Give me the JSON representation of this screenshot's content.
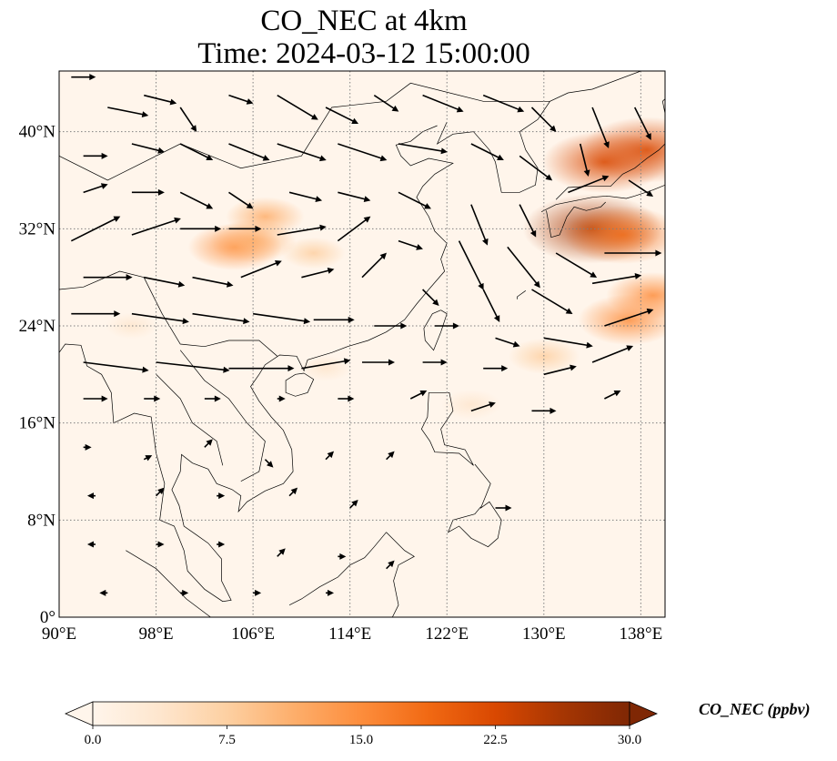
{
  "title": {
    "line1": "CO_NEC at 4km",
    "line2": "Time: 2024-03-12 15:00:00"
  },
  "map": {
    "lon_range": [
      90,
      140
    ],
    "lat_range": [
      0,
      45
    ],
    "lon_ticks": [
      "90°E",
      "98°E",
      "106°E",
      "114°E",
      "122°E",
      "130°E",
      "138°E"
    ],
    "lat_ticks": [
      "0°",
      "8°N",
      "16°N",
      "24°N",
      "32°N",
      "40°N"
    ],
    "gridlines": "dotted",
    "background_color": "#fff5eb"
  },
  "colorbar": {
    "label": "CO_NEC (ppbv)",
    "ticks": [
      "0.0",
      "7.5",
      "15.0",
      "22.5",
      "30.0"
    ],
    "range": [
      0,
      30
    ],
    "colors": [
      "#fff5eb",
      "#fee6ce",
      "#fdd0a2",
      "#fdae6b",
      "#fd8d3c",
      "#f16913",
      "#d94801",
      "#a63603",
      "#7f2704"
    ],
    "extend": "both",
    "colormap": "Oranges"
  },
  "plumes": [
    {
      "lon": 104.5,
      "lat": 30.5,
      "value": 14
    },
    {
      "lon": 107.0,
      "lat": 33.0,
      "value": 10
    },
    {
      "lon": 106.0,
      "lat": 31.0,
      "value": 12
    },
    {
      "lon": 111.0,
      "lat": 30.0,
      "value": 6
    },
    {
      "lon": 135.0,
      "lat": 37.5,
      "value": 22
    },
    {
      "lon": 138.5,
      "lat": 38.5,
      "value": 24
    },
    {
      "lon": 134.0,
      "lat": 32.0,
      "value": 26
    },
    {
      "lon": 136.5,
      "lat": 31.5,
      "value": 20
    },
    {
      "lon": 137.0,
      "lat": 24.5,
      "value": 16
    },
    {
      "lon": 139.0,
      "lat": 26.5,
      "value": 14
    },
    {
      "lon": 130.0,
      "lat": 21.5,
      "value": 8
    },
    {
      "lon": 124.0,
      "lat": 17.5,
      "value": 5
    },
    {
      "lon": 112.0,
      "lat": 20.5,
      "value": 3
    },
    {
      "lon": 96.0,
      "lat": 24.0,
      "value": 3
    }
  ],
  "wind_arrows": [
    {
      "lon": 91,
      "lat": 44.5,
      "u": 3,
      "v": 0
    },
    {
      "lon": 94,
      "lat": 42,
      "u": 5,
      "v": -1
    },
    {
      "lon": 97,
      "lat": 43,
      "u": 4,
      "v": -1
    },
    {
      "lon": 100,
      "lat": 42,
      "u": 2,
      "v": -3
    },
    {
      "lon": 104,
      "lat": 43,
      "u": 3,
      "v": -1
    },
    {
      "lon": 108,
      "lat": 43,
      "u": 5,
      "v": -3
    },
    {
      "lon": 112,
      "lat": 42,
      "u": 4,
      "v": -2
    },
    {
      "lon": 116,
      "lat": 43,
      "u": 3,
      "v": -2
    },
    {
      "lon": 120,
      "lat": 43,
      "u": 5,
      "v": -2
    },
    {
      "lon": 125,
      "lat": 43,
      "u": 5,
      "v": -2
    },
    {
      "lon": 129,
      "lat": 42,
      "u": 3,
      "v": -3
    },
    {
      "lon": 134,
      "lat": 42,
      "u": 2,
      "v": -5
    },
    {
      "lon": 137.5,
      "lat": 42,
      "u": 2,
      "v": -4
    },
    {
      "lon": 92,
      "lat": 38,
      "u": 3,
      "v": 0
    },
    {
      "lon": 96,
      "lat": 39,
      "u": 4,
      "v": -1
    },
    {
      "lon": 100,
      "lat": 39,
      "u": 4,
      "v": -2
    },
    {
      "lon": 104,
      "lat": 39,
      "u": 5,
      "v": -2
    },
    {
      "lon": 108,
      "lat": 39,
      "u": 6,
      "v": -2
    },
    {
      "lon": 113,
      "lat": 39,
      "u": 6,
      "v": -2
    },
    {
      "lon": 118,
      "lat": 39,
      "u": 6,
      "v": -1
    },
    {
      "lon": 124,
      "lat": 39,
      "u": 4,
      "v": -2
    },
    {
      "lon": 128,
      "lat": 38,
      "u": 4,
      "v": -3
    },
    {
      "lon": 133,
      "lat": 39,
      "u": 1,
      "v": -4
    },
    {
      "lon": 137,
      "lat": 36,
      "u": 3,
      "v": -2
    },
    {
      "lon": 92,
      "lat": 35,
      "u": 3,
      "v": 1
    },
    {
      "lon": 96,
      "lat": 35,
      "u": 4,
      "v": 0
    },
    {
      "lon": 100,
      "lat": 35,
      "u": 4,
      "v": -2
    },
    {
      "lon": 104,
      "lat": 35,
      "u": 3,
      "v": -2
    },
    {
      "lon": 109,
      "lat": 35,
      "u": 4,
      "v": -1
    },
    {
      "lon": 113,
      "lat": 35,
      "u": 4,
      "v": -1
    },
    {
      "lon": 118,
      "lat": 35,
      "u": 4,
      "v": -2
    },
    {
      "lon": 124,
      "lat": 34,
      "u": 2,
      "v": -5
    },
    {
      "lon": 128,
      "lat": 34,
      "u": 2,
      "v": -4
    },
    {
      "lon": 132,
      "lat": 35,
      "u": 5,
      "v": 2
    },
    {
      "lon": 91,
      "lat": 31,
      "u": 6,
      "v": 3
    },
    {
      "lon": 96,
      "lat": 31.5,
      "u": 6,
      "v": 2
    },
    {
      "lon": 100,
      "lat": 32,
      "u": 5,
      "v": 0
    },
    {
      "lon": 104,
      "lat": 32,
      "u": 4,
      "v": 0
    },
    {
      "lon": 108,
      "lat": 31.5,
      "u": 6,
      "v": 1
    },
    {
      "lon": 113,
      "lat": 31,
      "u": 4,
      "v": 3
    },
    {
      "lon": 118,
      "lat": 31,
      "u": 3,
      "v": -1
    },
    {
      "lon": 123,
      "lat": 31,
      "u": 3,
      "v": -6
    },
    {
      "lon": 127,
      "lat": 30.5,
      "u": 4,
      "v": -5
    },
    {
      "lon": 131,
      "lat": 30,
      "u": 5,
      "v": -3
    },
    {
      "lon": 135,
      "lat": 30,
      "u": 7,
      "v": 0
    },
    {
      "lon": 92,
      "lat": 28,
      "u": 6,
      "v": 0
    },
    {
      "lon": 97,
      "lat": 28,
      "u": 5,
      "v": -1
    },
    {
      "lon": 101,
      "lat": 28,
      "u": 5,
      "v": -1
    },
    {
      "lon": 105,
      "lat": 28,
      "u": 5,
      "v": 2
    },
    {
      "lon": 110,
      "lat": 28,
      "u": 4,
      "v": 1
    },
    {
      "lon": 115,
      "lat": 28,
      "u": 3,
      "v": 3
    },
    {
      "lon": 120,
      "lat": 27,
      "u": 2,
      "v": -2
    },
    {
      "lon": 125,
      "lat": 27,
      "u": 2,
      "v": -4
    },
    {
      "lon": 129,
      "lat": 27,
      "u": 5,
      "v": -3
    },
    {
      "lon": 134,
      "lat": 27.5,
      "u": 6,
      "v": 1
    },
    {
      "lon": 91,
      "lat": 25,
      "u": 6,
      "v": 0
    },
    {
      "lon": 96,
      "lat": 25,
      "u": 7,
      "v": -1
    },
    {
      "lon": 101,
      "lat": 25,
      "u": 7,
      "v": -1
    },
    {
      "lon": 106,
      "lat": 25,
      "u": 7,
      "v": -1
    },
    {
      "lon": 111,
      "lat": 24.5,
      "u": 5,
      "v": 0
    },
    {
      "lon": 116,
      "lat": 24,
      "u": 4,
      "v": 0
    },
    {
      "lon": 121,
      "lat": 24,
      "u": 3,
      "v": 0
    },
    {
      "lon": 126,
      "lat": 23,
      "u": 3,
      "v": -1
    },
    {
      "lon": 130,
      "lat": 23,
      "u": 6,
      "v": -1
    },
    {
      "lon": 135,
      "lat": 24,
      "u": 6,
      "v": 2
    },
    {
      "lon": 92,
      "lat": 21,
      "u": 8,
      "v": -1
    },
    {
      "lon": 98,
      "lat": 21,
      "u": 9,
      "v": -1
    },
    {
      "lon": 104,
      "lat": 20.5,
      "u": 8,
      "v": 0
    },
    {
      "lon": 110,
      "lat": 20.5,
      "u": 6,
      "v": 1
    },
    {
      "lon": 115,
      "lat": 21,
      "u": 4,
      "v": 0
    },
    {
      "lon": 120,
      "lat": 21,
      "u": 3,
      "v": 0
    },
    {
      "lon": 125,
      "lat": 20.5,
      "u": 3,
      "v": 0
    },
    {
      "lon": 130,
      "lat": 20,
      "u": 4,
      "v": 1
    },
    {
      "lon": 134,
      "lat": 21,
      "u": 5,
      "v": 2
    },
    {
      "lon": 92,
      "lat": 18,
      "u": 3,
      "v": 0
    },
    {
      "lon": 97,
      "lat": 18,
      "u": 2,
      "v": 0
    },
    {
      "lon": 102,
      "lat": 18,
      "u": 2,
      "v": 0
    },
    {
      "lon": 108,
      "lat": 18,
      "u": 1,
      "v": 0
    },
    {
      "lon": 113,
      "lat": 18,
      "u": 2,
      "v": 0
    },
    {
      "lon": 119,
      "lat": 18,
      "u": 2,
      "v": 1
    },
    {
      "lon": 124,
      "lat": 17,
      "u": 3,
      "v": 1
    },
    {
      "lon": 129,
      "lat": 17,
      "u": 3,
      "v": 0
    },
    {
      "lon": 135,
      "lat": 18,
      "u": 2,
      "v": 1
    },
    {
      "lon": 92,
      "lat": 14,
      "u": 1,
      "v": 0
    },
    {
      "lon": 97,
      "lat": 13,
      "u": 1,
      "v": 0.5
    },
    {
      "lon": 102,
      "lat": 14,
      "u": 1,
      "v": 1
    },
    {
      "lon": 107,
      "lat": 13,
      "u": 1,
      "v": -1
    },
    {
      "lon": 112,
      "lat": 13,
      "u": 1,
      "v": 1
    },
    {
      "lon": 117,
      "lat": 13,
      "u": 1,
      "v": 1
    },
    {
      "lon": 93,
      "lat": 10,
      "u": -1,
      "v": 0
    },
    {
      "lon": 98,
      "lat": 10,
      "u": 1,
      "v": 1
    },
    {
      "lon": 103,
      "lat": 10,
      "u": 1,
      "v": 0
    },
    {
      "lon": 109,
      "lat": 10,
      "u": 1,
      "v": 1
    },
    {
      "lon": 114,
      "lat": 9,
      "u": 1,
      "v": 1
    },
    {
      "lon": 126,
      "lat": 9,
      "u": 2,
      "v": 0
    },
    {
      "lon": 93,
      "lat": 6,
      "u": -1,
      "v": 0
    },
    {
      "lon": 98,
      "lat": 6,
      "u": 1,
      "v": 0
    },
    {
      "lon": 103,
      "lat": 6,
      "u": 1,
      "v": 0
    },
    {
      "lon": 108,
      "lat": 5,
      "u": 1,
      "v": 1
    },
    {
      "lon": 113,
      "lat": 5,
      "u": 1,
      "v": 0
    },
    {
      "lon": 117,
      "lat": 4,
      "u": 1,
      "v": 1
    },
    {
      "lon": 94,
      "lat": 2,
      "u": -1,
      "v": 0
    },
    {
      "lon": 100,
      "lat": 2,
      "u": 1,
      "v": 0
    },
    {
      "lon": 106,
      "lat": 2,
      "u": 1,
      "v": 0
    },
    {
      "lon": 112,
      "lat": 2,
      "u": 1,
      "v": 0
    }
  ],
  "coastlines": [
    [
      [
        122.0,
        40.8
      ],
      [
        121.2,
        39.0
      ],
      [
        122.5,
        39.8
      ],
      [
        124.2,
        40.0
      ],
      [
        125.5,
        38.5
      ],
      [
        126.0,
        37.5
      ],
      [
        126.5,
        35.0
      ],
      [
        128.0,
        35.0
      ],
      [
        129.3,
        35.6
      ],
      [
        129.5,
        37.0
      ],
      [
        128.5,
        38.5
      ],
      [
        128.0,
        40.0
      ],
      [
        129.5,
        41.0
      ],
      [
        130.5,
        42.5
      ],
      [
        132.0,
        43.2
      ],
      [
        134.0,
        43.5
      ],
      [
        138.0,
        45.0
      ]
    ],
    [
      [
        121.2,
        40.5
      ],
      [
        120.0,
        40.0
      ],
      [
        119.0,
        39.2
      ],
      [
        117.8,
        38.9
      ],
      [
        118.2,
        38.0
      ],
      [
        119.0,
        37.2
      ],
      [
        120.5,
        37.8
      ],
      [
        122.5,
        37.4
      ],
      [
        121.0,
        36.5
      ],
      [
        120.0,
        35.5
      ],
      [
        119.5,
        34.6
      ],
      [
        120.5,
        33.0
      ],
      [
        121.0,
        31.8
      ],
      [
        122.0,
        30.8
      ],
      [
        121.5,
        29.5
      ],
      [
        121.8,
        28.5
      ],
      [
        120.5,
        27.0
      ],
      [
        119.5,
        25.8
      ],
      [
        118.5,
        24.5
      ],
      [
        117.0,
        23.5
      ],
      [
        115.5,
        22.8
      ],
      [
        113.8,
        22.3
      ],
      [
        112.5,
        21.8
      ],
      [
        110.5,
        21.2
      ],
      [
        110.2,
        20.3
      ],
      [
        109.6,
        21.5
      ],
      [
        108.2,
        21.6
      ],
      [
        107.0,
        20.8
      ],
      [
        106.5,
        20.0
      ],
      [
        105.8,
        19.0
      ],
      [
        106.5,
        17.8
      ],
      [
        107.5,
        16.5
      ],
      [
        108.5,
        15.4
      ],
      [
        109.2,
        13.8
      ],
      [
        109.3,
        12.0
      ],
      [
        108.5,
        11.0
      ],
      [
        107.0,
        10.4
      ],
      [
        105.5,
        9.5
      ],
      [
        104.8,
        8.7
      ],
      [
        105.0,
        10.0
      ],
      [
        104.3,
        10.5
      ],
      [
        103.0,
        11.0
      ],
      [
        102.3,
        12.2
      ],
      [
        101.0,
        12.7
      ],
      [
        100.1,
        13.4
      ],
      [
        100.0,
        12.0
      ],
      [
        99.3,
        10.5
      ],
      [
        99.9,
        9.2
      ],
      [
        100.3,
        7.5
      ],
      [
        101.3,
        6.8
      ],
      [
        102.3,
        6.1
      ],
      [
        103.4,
        4.8
      ],
      [
        103.4,
        3.0
      ],
      [
        104.2,
        1.4
      ],
      [
        103.5,
        1.3
      ],
      [
        102.0,
        2.3
      ],
      [
        100.6,
        3.8
      ],
      [
        100.3,
        5.5
      ],
      [
        99.5,
        7.5
      ],
      [
        98.3,
        8.0
      ],
      [
        98.5,
        9.5
      ],
      [
        98.7,
        11.0
      ],
      [
        98.0,
        13.5
      ],
      [
        97.6,
        16.5
      ],
      [
        96.2,
        16.8
      ],
      [
        94.5,
        16.0
      ],
      [
        94.3,
        18.5
      ],
      [
        93.5,
        20.0
      ],
      [
        92.3,
        20.7
      ],
      [
        91.8,
        22.4
      ],
      [
        90.5,
        22.5
      ],
      [
        90.0,
        21.8
      ]
    ],
    [
      [
        95.5,
        5.5
      ],
      [
        98.0,
        4.0
      ],
      [
        100.5,
        1.5
      ],
      [
        102.5,
        0.0
      ]
    ],
    [
      [
        110.2,
        20.1
      ],
      [
        111.0,
        19.6
      ],
      [
        110.5,
        18.5
      ],
      [
        109.5,
        18.2
      ],
      [
        108.7,
        18.5
      ],
      [
        108.7,
        19.5
      ],
      [
        109.5,
        20.0
      ],
      [
        110.2,
        20.1
      ]
    ],
    [
      [
        121.5,
        25.3
      ],
      [
        122.0,
        25.0
      ],
      [
        121.5,
        23.5
      ],
      [
        120.9,
        22.0
      ],
      [
        120.2,
        22.8
      ],
      [
        120.1,
        23.8
      ],
      [
        120.8,
        25.0
      ],
      [
        121.5,
        25.3
      ]
    ],
    [
      [
        120.5,
        18.5
      ],
      [
        122.2,
        18.5
      ],
      [
        122.5,
        17.0
      ],
      [
        121.5,
        15.5
      ],
      [
        121.8,
        14.2
      ],
      [
        123.5,
        13.8
      ],
      [
        124.2,
        12.5
      ],
      [
        123.0,
        13.5
      ],
      [
        121.0,
        13.6
      ],
      [
        120.6,
        14.5
      ],
      [
        119.9,
        15.5
      ],
      [
        120.4,
        16.5
      ],
      [
        120.5,
        18.5
      ]
    ],
    [
      [
        124.3,
        12.6
      ],
      [
        125.6,
        11.0
      ],
      [
        125.2,
        10.0
      ],
      [
        124.8,
        9.0
      ],
      [
        125.5,
        9.5
      ],
      [
        126.5,
        8.0
      ],
      [
        126.2,
        6.5
      ],
      [
        125.4,
        5.8
      ],
      [
        124.0,
        6.5
      ],
      [
        123.0,
        7.5
      ],
      [
        122.1,
        7.0
      ],
      [
        122.5,
        8.0
      ],
      [
        124.3,
        8.5
      ],
      [
        124.8,
        9.1
      ]
    ],
    [
      [
        117.0,
        7.0
      ],
      [
        118.5,
        5.5
      ],
      [
        119.3,
        5.0
      ],
      [
        118.0,
        4.3
      ],
      [
        117.6,
        3.0
      ],
      [
        118.0,
        1.0
      ],
      [
        117.5,
        0.0
      ]
    ],
    [
      [
        117.0,
        7.0
      ],
      [
        116.0,
        5.8
      ],
      [
        115.2,
        4.9
      ],
      [
        114.0,
        4.3
      ],
      [
        113.0,
        3.3
      ],
      [
        111.5,
        2.5
      ],
      [
        110.0,
        1.5
      ],
      [
        109.0,
        1.0
      ]
    ],
    [
      [
        129.8,
        33.4
      ],
      [
        131.0,
        34.0
      ],
      [
        132.5,
        34.3
      ],
      [
        134.0,
        34.6
      ],
      [
        135.2,
        34.7
      ],
      [
        136.8,
        34.5
      ],
      [
        137.5,
        34.7
      ],
      [
        139.0,
        35.2
      ],
      [
        140.0,
        35.6
      ]
    ],
    [
      [
        130.2,
        33.5
      ],
      [
        130.6,
        31.3
      ],
      [
        131.3,
        31.5
      ],
      [
        131.9,
        33.0
      ],
      [
        132.5,
        33.8
      ],
      [
        133.5,
        33.5
      ],
      [
        134.7,
        33.8
      ],
      [
        135.1,
        34.2
      ]
    ],
    [
      [
        131.0,
        34.4
      ],
      [
        132.0,
        35.4
      ],
      [
        133.5,
        35.5
      ],
      [
        135.5,
        35.5
      ],
      [
        136.5,
        36.5
      ],
      [
        137.5,
        37.0
      ],
      [
        138.5,
        37.8
      ],
      [
        139.5,
        38.5
      ],
      [
        140.0,
        39.0
      ]
    ],
    [
      [
        140.0,
        41.5
      ],
      [
        139.8,
        42.5
      ],
      [
        140.5,
        43.2
      ],
      [
        141.5,
        45.0
      ]
    ],
    [
      [
        128.5,
        26.9
      ],
      [
        127.8,
        26.4
      ],
      [
        127.8,
        26.2
      ]
    ],
    [
      [
        90.0,
        27.0
      ],
      [
        92.0,
        27.2
      ],
      [
        95.0,
        28.5
      ],
      [
        97.0,
        28.0
      ],
      [
        98.5,
        25.0
      ],
      [
        100.0,
        22.5
      ],
      [
        102.0,
        22.3
      ],
      [
        104.0,
        22.8
      ],
      [
        106.5,
        22.8
      ],
      [
        108.0,
        21.5
      ]
    ],
    [
      [
        100.0,
        22.0
      ],
      [
        102.0,
        19.5
      ],
      [
        104.0,
        18.0
      ],
      [
        105.5,
        16.0
      ],
      [
        107.0,
        14.5
      ],
      [
        106.5,
        12.0
      ],
      [
        105.0,
        11.2
      ]
    ],
    [
      [
        98.0,
        20.0
      ],
      [
        100.0,
        18.0
      ],
      [
        101.0,
        16.0
      ],
      [
        103.0,
        14.5
      ],
      [
        103.5,
        12.5
      ]
    ],
    [
      [
        90.0,
        38.0
      ],
      [
        94.0,
        36.0
      ],
      [
        100.0,
        39.0
      ],
      [
        105.0,
        37.0
      ],
      [
        110.0,
        38.0
      ],
      [
        112.5,
        42.0
      ],
      [
        117.0,
        42.5
      ],
      [
        119.0,
        44.0
      ],
      [
        125.0,
        42.5
      ],
      [
        130.5,
        42.5
      ]
    ]
  ]
}
